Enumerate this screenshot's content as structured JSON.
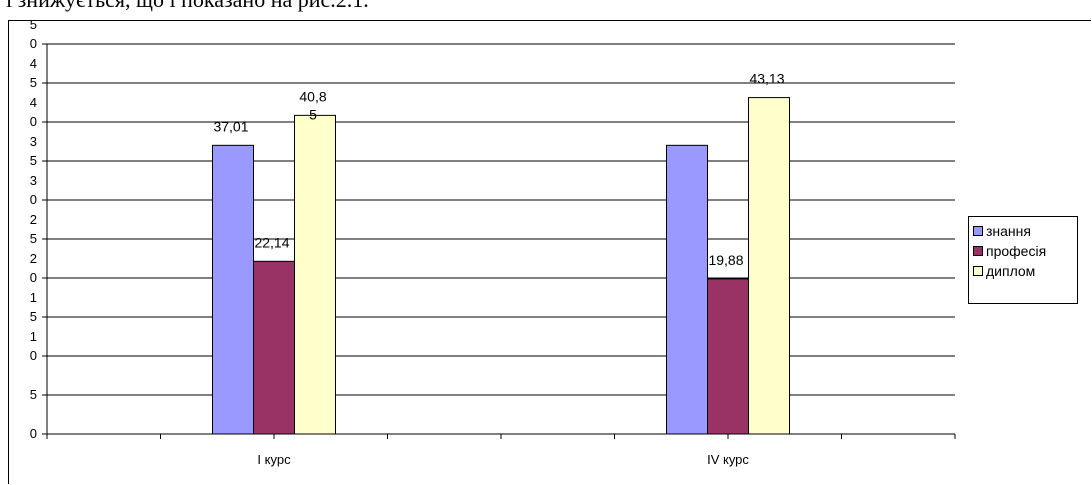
{
  "context_text": "і знижується, що і показано на рис.2.1.",
  "chart_data": {
    "type": "bar",
    "categories": [
      "I курс",
      "IV курс"
    ],
    "series": [
      {
        "name": "знання",
        "values": [
          37.01,
          37.01
        ],
        "labels": [
          "37,01",
          ""
        ],
        "color": "#9999FF"
      },
      {
        "name": "професія",
        "values": [
          22.14,
          19.88
        ],
        "labels": [
          "22,14",
          "19,88"
        ],
        "color": "#993366"
      },
      {
        "name": "диплом",
        "values": [
          40.85,
          43.13
        ],
        "labels": [
          "40,8\n5",
          "43,13"
        ],
        "color": "#FFFFCC"
      }
    ],
    "ylim": [
      0,
      50
    ],
    "ytick_labels": [
      {
        "value": 0,
        "text": "0"
      },
      {
        "value": 5,
        "text": "5"
      },
      {
        "value": 10,
        "text": "1\n0"
      },
      {
        "value": 15,
        "text": "1\n5"
      },
      {
        "value": 20,
        "text": "2\n0"
      },
      {
        "value": 25,
        "text": "2\n5"
      },
      {
        "value": 30,
        "text": "3\n0"
      },
      {
        "value": 35,
        "text": "3\n5"
      },
      {
        "value": 40,
        "text": "4\n0"
      },
      {
        "value": 45,
        "text": "4\n5"
      },
      {
        "value": 50,
        "text": "5\n0"
      }
    ],
    "grid": true,
    "legend_position": "right"
  }
}
